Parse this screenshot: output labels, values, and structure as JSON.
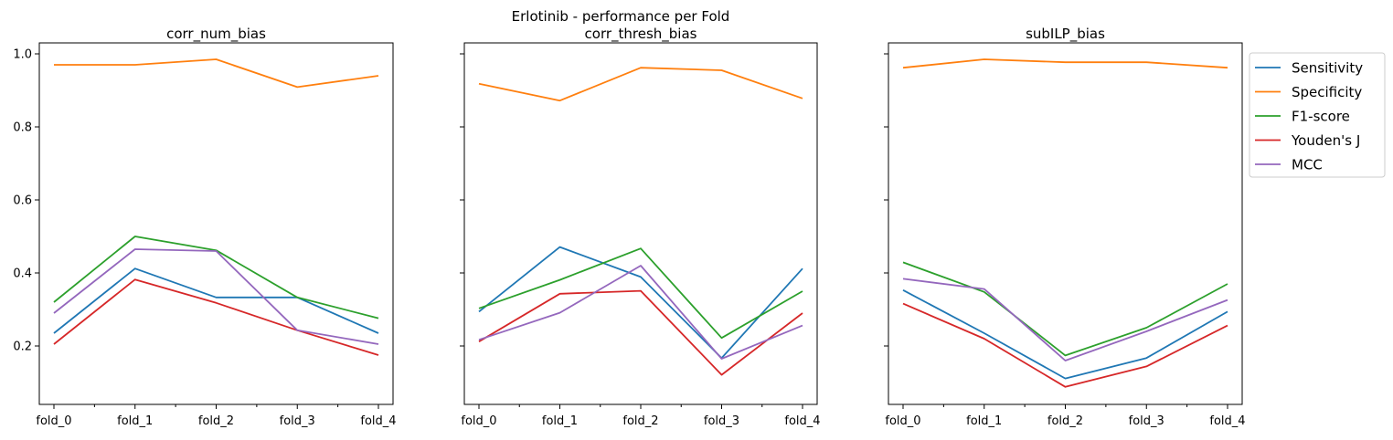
{
  "suptitle": "Erlotinib - performance per Fold",
  "colors": {
    "Sensitivity": "#1f77b4",
    "Specificity": "#ff7f0e",
    "F1-score": "#2ca02c",
    "Youden's J": "#d62728",
    "MCC": "#9467bd"
  },
  "legend": {
    "placement": "outside right of last panel",
    "entries": [
      "Sensitivity",
      "Specificity",
      "F1-score",
      "Youden's J",
      "MCC"
    ]
  },
  "chart_data": [
    {
      "type": "line",
      "title": "corr_num_bias",
      "categories": [
        "fold_0",
        "fold_1",
        "fold_2",
        "fold_3",
        "fold_4"
      ],
      "ylim": [
        0.04,
        1.03
      ],
      "yticks": [
        0.2,
        0.4,
        0.6,
        0.8,
        1.0
      ],
      "ytick_labels": [
        "0.2",
        "0.4",
        "0.6",
        "0.8",
        "1.0"
      ],
      "show_ytick_labels": true,
      "grid": false,
      "series": [
        {
          "name": "Sensitivity",
          "values": [
            0.235,
            0.412,
            0.333,
            0.333,
            0.235
          ]
        },
        {
          "name": "Specificity",
          "values": [
            0.97,
            0.97,
            0.985,
            0.909,
            0.94
          ]
        },
        {
          "name": "F1-score",
          "values": [
            0.32,
            0.5,
            0.462,
            0.333,
            0.276
          ]
        },
        {
          "name": "Youden's J",
          "values": [
            0.205,
            0.382,
            0.318,
            0.243,
            0.175
          ]
        },
        {
          "name": "MCC",
          "values": [
            0.29,
            0.465,
            0.46,
            0.243,
            0.205
          ]
        }
      ]
    },
    {
      "type": "line",
      "title": "corr_thresh_bias",
      "categories": [
        "fold_0",
        "fold_1",
        "fold_2",
        "fold_3",
        "fold_4"
      ],
      "ylim": [
        0.04,
        1.03
      ],
      "yticks": [
        0.2,
        0.4,
        0.6,
        0.8,
        1.0
      ],
      "ytick_labels": [
        "0.2",
        "0.4",
        "0.6",
        "0.8",
        "1.0"
      ],
      "show_ytick_labels": false,
      "grid": false,
      "series": [
        {
          "name": "Sensitivity",
          "values": [
            0.294,
            0.471,
            0.389,
            0.167,
            0.412
          ]
        },
        {
          "name": "Specificity",
          "values": [
            0.918,
            0.872,
            0.962,
            0.955,
            0.878
          ]
        },
        {
          "name": "F1-score",
          "values": [
            0.303,
            0.381,
            0.467,
            0.222,
            0.35
          ]
        },
        {
          "name": "Youden's J",
          "values": [
            0.212,
            0.343,
            0.351,
            0.121,
            0.29
          ]
        },
        {
          "name": "MCC",
          "values": [
            0.217,
            0.291,
            0.42,
            0.165,
            0.256
          ]
        }
      ]
    },
    {
      "type": "line",
      "title": "subILP_bias",
      "categories": [
        "fold_0",
        "fold_1",
        "fold_2",
        "fold_3",
        "fold_4"
      ],
      "ylim": [
        0.04,
        1.03
      ],
      "yticks": [
        0.2,
        0.4,
        0.6,
        0.8,
        1.0
      ],
      "ytick_labels": [
        "0.2",
        "0.4",
        "0.6",
        "0.8",
        "1.0"
      ],
      "show_ytick_labels": false,
      "grid": false,
      "series": [
        {
          "name": "Sensitivity",
          "values": [
            0.353,
            0.235,
            0.111,
            0.167,
            0.294
          ]
        },
        {
          "name": "Specificity",
          "values": [
            0.962,
            0.985,
            0.977,
            0.977,
            0.962
          ]
        },
        {
          "name": "F1-score",
          "values": [
            0.429,
            0.348,
            0.174,
            0.25,
            0.37
          ]
        },
        {
          "name": "Youden's J",
          "values": [
            0.316,
            0.22,
            0.088,
            0.144,
            0.256
          ]
        },
        {
          "name": "MCC",
          "values": [
            0.384,
            0.356,
            0.16,
            0.24,
            0.326
          ]
        }
      ]
    }
  ]
}
